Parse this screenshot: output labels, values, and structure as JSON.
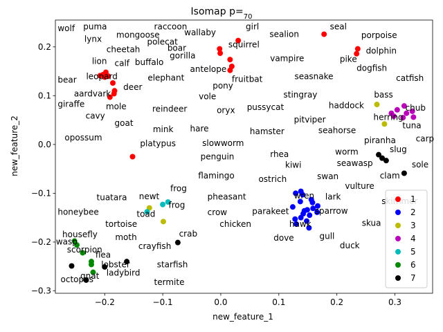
{
  "chart_data": {
    "type": "scatter",
    "title": "Isomap p=",
    "title_sub": "70",
    "xlabel": "new_feature_1",
    "ylabel": "new_feature_2",
    "xlim": [
      -0.285,
      0.365
    ],
    "ylim": [
      -0.305,
      0.255
    ],
    "xticks": [
      -0.2,
      -0.1,
      0.0,
      0.1,
      0.2,
      0.3
    ],
    "xtick_labels": [
      "−0.2",
      "−0.1",
      "0.0",
      "0.1",
      "0.2",
      "0.3"
    ],
    "yticks": [
      -0.3,
      -0.2,
      -0.1,
      0.0,
      0.1,
      0.2
    ],
    "ytick_labels": [
      "−0.3",
      "−0.2",
      "−0.1",
      "0.0",
      "0.1",
      "0.2"
    ],
    "grid": false,
    "legend_position": "lower-right",
    "series": [
      {
        "name": "1",
        "color": "#ff0000",
        "points": [
          [
            0.178,
            0.226
          ],
          [
            0.03,
            0.213
          ],
          [
            -0.002,
            0.196
          ],
          [
            -0.001,
            0.187
          ],
          [
            0.016,
            0.174
          ],
          [
            0.019,
            0.16
          ],
          [
            0.016,
            0.152
          ],
          [
            0.236,
            0.196
          ],
          [
            0.234,
            0.186
          ],
          [
            -0.198,
            0.148
          ],
          [
            -0.203,
            0.143
          ],
          [
            -0.208,
            0.141
          ],
          [
            -0.2,
            0.138
          ],
          [
            -0.194,
            0.14
          ],
          [
            -0.186,
            0.126
          ],
          [
            -0.183,
            0.11
          ],
          [
            -0.184,
            0.104
          ],
          [
            -0.191,
            0.097
          ],
          [
            -0.152,
            -0.025
          ]
        ]
      },
      {
        "name": "2",
        "color": "#0000ff",
        "points": [
          [
            0.138,
            -0.096
          ],
          [
            0.129,
            -0.1
          ],
          [
            0.141,
            -0.103
          ],
          [
            0.156,
            -0.113
          ],
          [
            0.137,
            -0.117
          ],
          [
            0.158,
            -0.119
          ],
          [
            0.167,
            -0.126
          ],
          [
            0.124,
            -0.128
          ],
          [
            0.159,
            -0.131
          ],
          [
            0.149,
            -0.134
          ],
          [
            0.144,
            -0.136
          ],
          [
            0.166,
            -0.139
          ],
          [
            0.142,
            -0.142
          ],
          [
            0.153,
            -0.145
          ],
          [
            0.138,
            -0.15
          ],
          [
            0.128,
            -0.153
          ],
          [
            0.148,
            -0.157
          ],
          [
            0.13,
            -0.163
          ],
          [
            0.152,
            -0.171
          ]
        ]
      },
      {
        "name": "3",
        "color": "#bbbb00",
        "points": [
          [
            0.269,
            0.082
          ],
          [
            0.282,
            0.042
          ],
          [
            -0.123,
            -0.13
          ],
          [
            -0.099,
            -0.158
          ]
        ]
      },
      {
        "name": "4",
        "color": "#bb00bb",
        "points": [
          [
            0.316,
            0.079
          ],
          [
            0.304,
            0.071
          ],
          [
            0.294,
            0.064
          ],
          [
            0.33,
            0.068
          ],
          [
            0.32,
            0.064
          ],
          [
            0.298,
            0.058
          ],
          [
            0.314,
            0.055
          ],
          [
            0.332,
            0.056
          ]
        ]
      },
      {
        "name": "5",
        "color": "#00bbbb",
        "points": [
          [
            -0.091,
            -0.118
          ],
          [
            -0.1,
            -0.123
          ],
          [
            -0.127,
            -0.138
          ]
        ]
      },
      {
        "name": "6",
        "color": "#008800",
        "points": [
          [
            -0.252,
            -0.198
          ],
          [
            -0.248,
            -0.206
          ],
          [
            -0.238,
            -0.222
          ],
          [
            -0.223,
            -0.24
          ],
          [
            -0.223,
            -0.246
          ],
          [
            -0.22,
            -0.262
          ]
        ]
      },
      {
        "name": "7",
        "color": "#000000",
        "points": [
          [
            0.272,
            -0.021
          ],
          [
            0.278,
            -0.028
          ],
          [
            0.285,
            -0.033
          ],
          [
            0.316,
            -0.059
          ],
          [
            -0.074,
            -0.201
          ],
          [
            -0.162,
            -0.24
          ],
          [
            -0.2,
            -0.251
          ],
          [
            -0.257,
            -0.249
          ],
          [
            -0.232,
            -0.278
          ]
        ]
      }
    ],
    "annotations": [
      {
        "text": "wolf",
        "x": -0.281,
        "y": 0.232
      },
      {
        "text": "puma",
        "x": -0.237,
        "y": 0.236
      },
      {
        "text": "raccoon",
        "x": -0.115,
        "y": 0.236
      },
      {
        "text": "girl",
        "x": 0.043,
        "y": 0.236
      },
      {
        "text": "seal",
        "x": 0.188,
        "y": 0.236
      },
      {
        "text": "mongoose",
        "x": -0.18,
        "y": 0.219
      },
      {
        "text": "wallaby",
        "x": -0.063,
        "y": 0.224
      },
      {
        "text": "sealion",
        "x": 0.084,
        "y": 0.22
      },
      {
        "text": "porpoise",
        "x": 0.242,
        "y": 0.218
      },
      {
        "text": "lynx",
        "x": -0.235,
        "y": 0.21
      },
      {
        "text": "polecat",
        "x": -0.127,
        "y": 0.205
      },
      {
        "text": "squirrel",
        "x": 0.013,
        "y": 0.199
      },
      {
        "text": "cheetah",
        "x": -0.197,
        "y": 0.189
      },
      {
        "text": "boar",
        "x": -0.092,
        "y": 0.192
      },
      {
        "text": "dolphin",
        "x": 0.25,
        "y": 0.186
      },
      {
        "text": "gorilla",
        "x": -0.088,
        "y": 0.176
      },
      {
        "text": "vampire",
        "x": 0.085,
        "y": 0.171
      },
      {
        "text": "pike",
        "x": 0.205,
        "y": 0.169
      },
      {
        "text": "lion",
        "x": -0.222,
        "y": 0.165
      },
      {
        "text": "calf",
        "x": -0.183,
        "y": 0.161
      },
      {
        "text": "buffalo",
        "x": -0.148,
        "y": 0.163
      },
      {
        "text": "antelope",
        "x": -0.053,
        "y": 0.149
      },
      {
        "text": "dogfish",
        "x": 0.234,
        "y": 0.151
      },
      {
        "text": "leopard",
        "x": -0.232,
        "y": 0.134
      },
      {
        "text": "elephant",
        "x": -0.126,
        "y": 0.131
      },
      {
        "text": "fruitbat",
        "x": 0.019,
        "y": 0.128
      },
      {
        "text": "seasnake",
        "x": 0.127,
        "y": 0.134
      },
      {
        "text": "catfish",
        "x": 0.302,
        "y": 0.13
      },
      {
        "text": "bear",
        "x": -0.281,
        "y": 0.127
      },
      {
        "text": "deer",
        "x": -0.168,
        "y": 0.112
      },
      {
        "text": "pony",
        "x": -0.014,
        "y": 0.115
      },
      {
        "text": "bass",
        "x": 0.264,
        "y": 0.096
      },
      {
        "text": "aardvark",
        "x": -0.253,
        "y": 0.098
      },
      {
        "text": "vole",
        "x": -0.038,
        "y": 0.093
      },
      {
        "text": "stingray",
        "x": 0.108,
        "y": 0.096
      },
      {
        "text": "giraffe",
        "x": -0.281,
        "y": 0.077
      },
      {
        "text": "mole",
        "x": -0.198,
        "y": 0.072
      },
      {
        "text": "reindeer",
        "x": -0.118,
        "y": 0.067
      },
      {
        "text": "oryx",
        "x": -0.007,
        "y": 0.064
      },
      {
        "text": "pussycat",
        "x": 0.045,
        "y": 0.071
      },
      {
        "text": "haddock",
        "x": 0.186,
        "y": 0.074
      },
      {
        "text": "chub",
        "x": 0.318,
        "y": 0.069
      },
      {
        "text": "cavy",
        "x": -0.233,
        "y": 0.053
      },
      {
        "text": "herring",
        "x": 0.263,
        "y": 0.05
      },
      {
        "text": "pitviper",
        "x": 0.126,
        "y": 0.045
      },
      {
        "text": "goat",
        "x": -0.183,
        "y": 0.038
      },
      {
        "text": "tuna",
        "x": 0.313,
        "y": 0.033
      },
      {
        "text": "mink",
        "x": -0.117,
        "y": 0.025
      },
      {
        "text": "hare",
        "x": -0.053,
        "y": 0.027
      },
      {
        "text": "hamster",
        "x": 0.05,
        "y": 0.021
      },
      {
        "text": "seahorse",
        "x": 0.168,
        "y": 0.023
      },
      {
        "text": "opossum",
        "x": -0.269,
        "y": 0.008
      },
      {
        "text": "carp",
        "x": 0.336,
        "y": 0.006
      },
      {
        "text": "piranha",
        "x": 0.247,
        "y": 0.003
      },
      {
        "text": "platypus",
        "x": -0.139,
        "y": -0.004
      },
      {
        "text": "slowworm",
        "x": -0.032,
        "y": -0.003
      },
      {
        "text": "worm",
        "x": 0.197,
        "y": -0.021
      },
      {
        "text": "slug",
        "x": 0.291,
        "y": -0.016
      },
      {
        "text": "rhea",
        "x": 0.085,
        "y": -0.026
      },
      {
        "text": "penguin",
        "x": -0.035,
        "y": -0.031
      },
      {
        "text": "seawasp",
        "x": 0.2,
        "y": -0.044
      },
      {
        "text": "sole",
        "x": 0.329,
        "y": -0.047
      },
      {
        "text": "kiwi",
        "x": 0.111,
        "y": -0.048
      },
      {
        "text": "clam",
        "x": 0.274,
        "y": -0.07
      },
      {
        "text": "flamingo",
        "x": -0.039,
        "y": -0.07
      },
      {
        "text": "swan",
        "x": 0.166,
        "y": -0.071
      },
      {
        "text": "ostrich",
        "x": 0.065,
        "y": -0.077
      },
      {
        "text": "frog",
        "x": -0.087,
        "y": -0.096
      },
      {
        "text": "vulture",
        "x": 0.214,
        "y": -0.091
      },
      {
        "text": "tuatara",
        "x": -0.214,
        "y": -0.114
      },
      {
        "text": "newt",
        "x": -0.141,
        "y": -0.112
      },
      {
        "text": "pheasant",
        "x": -0.023,
        "y": -0.113
      },
      {
        "text": "wren",
        "x": 0.126,
        "y": -0.111
      },
      {
        "text": "lark",
        "x": 0.18,
        "y": -0.113
      },
      {
        "text": "skimmer",
        "x": 0.277,
        "y": -0.122
      },
      {
        "text": "frog",
        "x": -0.09,
        "y": -0.13
      },
      {
        "text": "honeybee",
        "x": -0.281,
        "y": -0.144
      },
      {
        "text": "toad",
        "x": -0.145,
        "y": -0.148
      },
      {
        "text": "crow",
        "x": -0.023,
        "y": -0.145
      },
      {
        "text": "parakeet",
        "x": 0.054,
        "y": -0.143
      },
      {
        "text": "sparrow",
        "x": 0.162,
        "y": -0.142
      },
      {
        "text": "tortoise",
        "x": -0.199,
        "y": -0.169
      },
      {
        "text": "chicken",
        "x": -0.002,
        "y": -0.169
      },
      {
        "text": "hawk",
        "x": 0.118,
        "y": -0.169
      },
      {
        "text": "skua",
        "x": 0.243,
        "y": -0.167
      },
      {
        "text": "housefly",
        "x": -0.273,
        "y": -0.19
      },
      {
        "text": "crab",
        "x": -0.072,
        "y": -0.189
      },
      {
        "text": "moth",
        "x": -0.182,
        "y": -0.196
      },
      {
        "text": "gull",
        "x": 0.17,
        "y": -0.194
      },
      {
        "text": "dove",
        "x": 0.091,
        "y": -0.197
      },
      {
        "text": "wasp",
        "x": -0.284,
        "y": -0.205
      },
      {
        "text": "crayfish",
        "x": -0.142,
        "y": -0.214
      },
      {
        "text": "duck",
        "x": 0.205,
        "y": -0.213
      },
      {
        "text": "scorpion",
        "x": -0.265,
        "y": -0.221
      },
      {
        "text": "flea",
        "x": -0.216,
        "y": -0.232
      },
      {
        "text": "starfish",
        "x": -0.11,
        "y": -0.252
      },
      {
        "text": "lobster",
        "x": -0.206,
        "y": -0.252
      },
      {
        "text": "ladybird",
        "x": -0.197,
        "y": -0.269
      },
      {
        "text": "gnat",
        "x": -0.242,
        "y": -0.275
      },
      {
        "text": "octopus",
        "x": -0.276,
        "y": -0.282
      },
      {
        "text": "termite",
        "x": -0.115,
        "y": -0.288
      }
    ]
  }
}
